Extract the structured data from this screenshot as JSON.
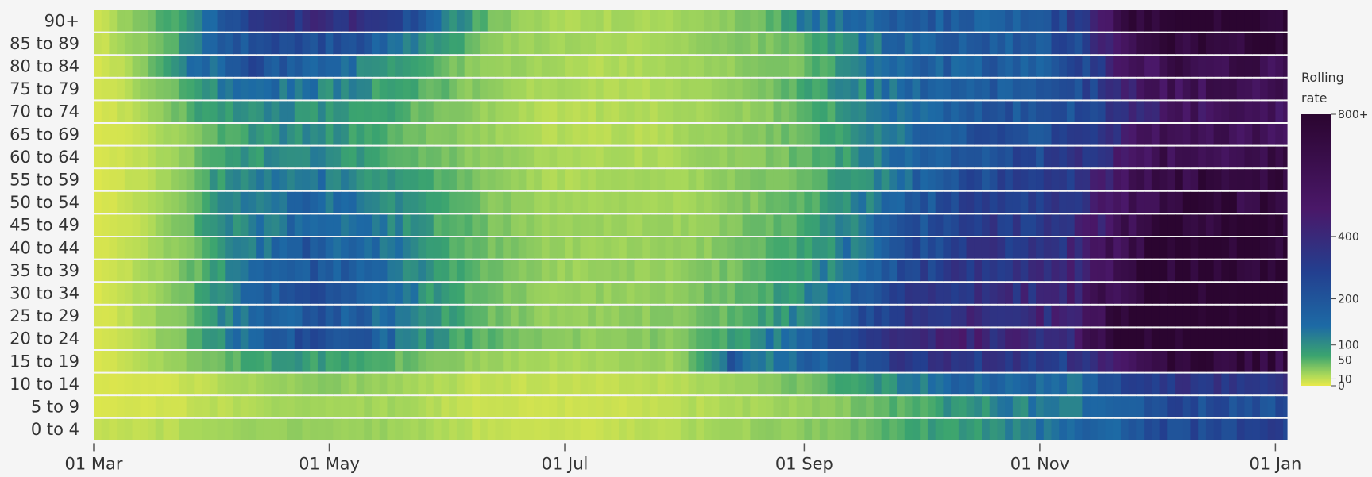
{
  "chart_data": {
    "type": "heatmap",
    "title": "",
    "xlabel": "",
    "ylabel": "",
    "x_tick_labels": [
      "01 Mar",
      "01 May",
      "01 Jul",
      "01 Sep",
      "01 Nov",
      "01 Jan"
    ],
    "x_range": [
      "2020-03-01",
      "2021-01-04"
    ],
    "rows": [
      "90+",
      "85 to 89",
      "80 to 84",
      "75 to 79",
      "70 to 74",
      "65 to 69",
      "60 to 64",
      "55 to 59",
      "50 to 54",
      "45 to 49",
      "40 to 44",
      "35 to 39",
      "30 to 34",
      "25 to 29",
      "20 to 24",
      "15 to 19",
      "10 to 14",
      "5 to 9",
      "0 to 4"
    ],
    "value_label": "Rolling rate",
    "colorbar": {
      "title_line1": "Rolling",
      "title_line2": "rate",
      "tick_labels": [
        "800+",
        "400",
        "200",
        "100",
        "50",
        "10",
        "0"
      ],
      "tick_values": [
        800,
        400,
        200,
        100,
        50,
        10,
        0
      ]
    },
    "colorscale": [
      "#e8e94a",
      "#93cf5c",
      "#3ba46f",
      "#1d6aa5",
      "#233f8f",
      "#4a1869",
      "#2b0530"
    ],
    "gridlines": false,
    "legend_position": "right",
    "row_profiles": {
      "90+": [
        [
          0,
          5
        ],
        [
          10,
          20
        ],
        [
          40,
          230
        ],
        [
          60,
          330
        ],
        [
          75,
          260
        ],
        [
          90,
          110
        ],
        [
          105,
          25
        ],
        [
          120,
          10
        ],
        [
          150,
          12
        ],
        [
          170,
          25
        ],
        [
          185,
          90
        ],
        [
          200,
          110
        ],
        [
          215,
          140
        ],
        [
          235,
          120
        ],
        [
          250,
          170
        ],
        [
          260,
          380
        ],
        [
          265,
          600
        ],
        [
          275,
          700
        ],
        [
          280,
          900
        ]
      ],
      "85 to 89": [
        [
          0,
          4
        ],
        [
          10,
          15
        ],
        [
          30,
          120
        ],
        [
          50,
          190
        ],
        [
          70,
          140
        ],
        [
          90,
          60
        ],
        [
          110,
          15
        ],
        [
          140,
          10
        ],
        [
          165,
          20
        ],
        [
          185,
          40
        ],
        [
          200,
          90
        ],
        [
          215,
          130
        ],
        [
          240,
          140
        ],
        [
          255,
          180
        ],
        [
          265,
          500
        ],
        [
          272,
          700
        ],
        [
          280,
          800
        ]
      ],
      "80 to 84": [
        [
          0,
          3
        ],
        [
          10,
          12
        ],
        [
          20,
          70
        ],
        [
          40,
          160
        ],
        [
          60,
          120
        ],
        [
          80,
          60
        ],
        [
          100,
          20
        ],
        [
          130,
          8
        ],
        [
          160,
          15
        ],
        [
          185,
          35
        ],
        [
          200,
          85
        ],
        [
          220,
          130
        ],
        [
          245,
          130
        ],
        [
          258,
          200
        ],
        [
          268,
          450
        ],
        [
          280,
          600
        ]
      ],
      "75 to 79": [
        [
          0,
          3
        ],
        [
          10,
          10
        ],
        [
          25,
          60
        ],
        [
          45,
          110
        ],
        [
          65,
          75
        ],
        [
          90,
          35
        ],
        [
          110,
          12
        ],
        [
          140,
          8
        ],
        [
          170,
          20
        ],
        [
          190,
          60
        ],
        [
          210,
          110
        ],
        [
          230,
          140
        ],
        [
          250,
          150
        ],
        [
          262,
          230
        ],
        [
          270,
          420
        ],
        [
          280,
          520
        ]
      ],
      "70 to 74": [
        [
          0,
          2
        ],
        [
          10,
          8
        ],
        [
          25,
          45
        ],
        [
          45,
          80
        ],
        [
          70,
          60
        ],
        [
          95,
          25
        ],
        [
          115,
          8
        ],
        [
          140,
          8
        ],
        [
          170,
          18
        ],
        [
          195,
          60
        ],
        [
          215,
          120
        ],
        [
          240,
          150
        ],
        [
          255,
          170
        ],
        [
          265,
          280
        ],
        [
          280,
          480
        ]
      ],
      "65 to 69": [
        [
          0,
          2
        ],
        [
          15,
          8
        ],
        [
          30,
          40
        ],
        [
          50,
          75
        ],
        [
          70,
          55
        ],
        [
          95,
          22
        ],
        [
          115,
          8
        ],
        [
          140,
          8
        ],
        [
          170,
          20
        ],
        [
          200,
          70
        ],
        [
          220,
          140
        ],
        [
          245,
          170
        ],
        [
          258,
          220
        ],
        [
          268,
          380
        ],
        [
          280,
          550
        ]
      ],
      "60 to 64": [
        [
          0,
          2
        ],
        [
          15,
          8
        ],
        [
          30,
          45
        ],
        [
          50,
          80
        ],
        [
          70,
          60
        ],
        [
          95,
          25
        ],
        [
          120,
          10
        ],
        [
          145,
          10
        ],
        [
          175,
          25
        ],
        [
          205,
          90
        ],
        [
          225,
          160
        ],
        [
          245,
          190
        ],
        [
          258,
          260
        ],
        [
          268,
          450
        ],
        [
          280,
          600
        ]
      ],
      "55 to 59": [
        [
          0,
          2
        ],
        [
          15,
          9
        ],
        [
          30,
          55
        ],
        [
          55,
          95
        ],
        [
          75,
          70
        ],
        [
          95,
          30
        ],
        [
          120,
          10
        ],
        [
          150,
          12
        ],
        [
          180,
          30
        ],
        [
          210,
          110
        ],
        [
          230,
          180
        ],
        [
          250,
          210
        ],
        [
          260,
          320
        ],
        [
          270,
          520
        ],
        [
          280,
          650
        ]
      ],
      "50 to 54": [
        [
          0,
          2
        ],
        [
          15,
          10
        ],
        [
          30,
          60
        ],
        [
          55,
          110
        ],
        [
          75,
          80
        ],
        [
          95,
          35
        ],
        [
          120,
          12
        ],
        [
          150,
          12
        ],
        [
          180,
          35
        ],
        [
          210,
          130
        ],
        [
          230,
          210
        ],
        [
          250,
          230
        ],
        [
          260,
          360
        ],
        [
          270,
          560
        ],
        [
          280,
          700
        ]
      ],
      "45 to 49": [
        [
          0,
          2
        ],
        [
          15,
          10
        ],
        [
          30,
          65
        ],
        [
          55,
          115
        ],
        [
          75,
          85
        ],
        [
          95,
          38
        ],
        [
          120,
          14
        ],
        [
          150,
          15
        ],
        [
          180,
          40
        ],
        [
          210,
          150
        ],
        [
          230,
          230
        ],
        [
          250,
          240
        ],
        [
          260,
          400
        ],
        [
          270,
          620
        ],
        [
          280,
          750
        ]
      ],
      "40 to 44": [
        [
          0,
          2
        ],
        [
          15,
          12
        ],
        [
          35,
          75
        ],
        [
          55,
          140
        ],
        [
          75,
          95
        ],
        [
          95,
          40
        ],
        [
          120,
          15
        ],
        [
          150,
          15
        ],
        [
          180,
          45
        ],
        [
          210,
          170
        ],
        [
          230,
          250
        ],
        [
          250,
          260
        ],
        [
          260,
          440
        ],
        [
          270,
          680
        ],
        [
          280,
          820
        ]
      ],
      "35 to 39": [
        [
          0,
          2
        ],
        [
          15,
          12
        ],
        [
          35,
          80
        ],
        [
          55,
          150
        ],
        [
          75,
          100
        ],
        [
          95,
          42
        ],
        [
          120,
          15
        ],
        [
          150,
          18
        ],
        [
          180,
          50
        ],
        [
          210,
          190
        ],
        [
          230,
          270
        ],
        [
          250,
          280
        ],
        [
          260,
          470
        ],
        [
          270,
          720
        ],
        [
          280,
          850
        ]
      ],
      "30 to 34": [
        [
          0,
          2
        ],
        [
          15,
          14
        ],
        [
          35,
          85
        ],
        [
          55,
          160
        ],
        [
          75,
          110
        ],
        [
          95,
          45
        ],
        [
          120,
          16
        ],
        [
          150,
          20
        ],
        [
          180,
          60
        ],
        [
          210,
          220
        ],
        [
          230,
          300
        ],
        [
          250,
          300
        ],
        [
          260,
          520
        ],
        [
          270,
          780
        ],
        [
          280,
          900
        ]
      ],
      "25 to 29": [
        [
          0,
          2
        ],
        [
          15,
          14
        ],
        [
          35,
          85
        ],
        [
          55,
          150
        ],
        [
          75,
          110
        ],
        [
          95,
          45
        ],
        [
          120,
          16
        ],
        [
          150,
          22
        ],
        [
          180,
          70
        ],
        [
          210,
          250
        ],
        [
          230,
          320
        ],
        [
          250,
          320
        ],
        [
          260,
          560
        ],
        [
          270,
          820
        ],
        [
          280,
          950
        ]
      ],
      "20 to 24": [
        [
          0,
          2
        ],
        [
          15,
          14
        ],
        [
          35,
          90
        ],
        [
          55,
          170
        ],
        [
          75,
          120
        ],
        [
          95,
          50
        ],
        [
          115,
          25
        ],
        [
          130,
          20
        ],
        [
          150,
          25
        ],
        [
          175,
          80
        ],
        [
          200,
          220
        ],
        [
          215,
          340
        ],
        [
          235,
          310
        ],
        [
          250,
          300
        ],
        [
          260,
          580
        ],
        [
          270,
          850
        ],
        [
          280,
          950
        ]
      ],
      "15 to 19": [
        [
          0,
          2
        ],
        [
          15,
          10
        ],
        [
          35,
          40
        ],
        [
          55,
          60
        ],
        [
          75,
          40
        ],
        [
          95,
          20
        ],
        [
          120,
          10
        ],
        [
          150,
          15
        ],
        [
          165,
          140
        ],
        [
          175,
          90
        ],
        [
          195,
          160
        ],
        [
          215,
          260
        ],
        [
          235,
          240
        ],
        [
          250,
          220
        ],
        [
          262,
          360
        ],
        [
          272,
          620
        ],
        [
          280,
          700
        ]
      ],
      "10 to 14": [
        [
          0,
          2
        ],
        [
          20,
          4
        ],
        [
          40,
          12
        ],
        [
          60,
          20
        ],
        [
          80,
          15
        ],
        [
          100,
          6
        ],
        [
          130,
          5
        ],
        [
          155,
          10
        ],
        [
          180,
          25
        ],
        [
          200,
          60
        ],
        [
          220,
          110
        ],
        [
          240,
          120
        ],
        [
          255,
          110
        ],
        [
          268,
          170
        ],
        [
          280,
          260
        ]
      ],
      "5 to 9": [
        [
          0,
          2
        ],
        [
          20,
          4
        ],
        [
          40,
          10
        ],
        [
          60,
          14
        ],
        [
          80,
          12
        ],
        [
          100,
          5
        ],
        [
          130,
          4
        ],
        [
          155,
          8
        ],
        [
          180,
          15
        ],
        [
          200,
          30
        ],
        [
          220,
          60
        ],
        [
          240,
          80
        ],
        [
          255,
          90
        ],
        [
          268,
          130
        ],
        [
          280,
          170
        ]
      ],
      "0 to 4": [
        [
          0,
          5
        ],
        [
          20,
          8
        ],
        [
          40,
          14
        ],
        [
          60,
          18
        ],
        [
          80,
          14
        ],
        [
          100,
          6
        ],
        [
          130,
          5
        ],
        [
          155,
          10
        ],
        [
          180,
          20
        ],
        [
          200,
          35
        ],
        [
          220,
          55
        ],
        [
          240,
          80
        ],
        [
          255,
          100
        ],
        [
          268,
          140
        ],
        [
          280,
          190
        ]
      ]
    }
  }
}
